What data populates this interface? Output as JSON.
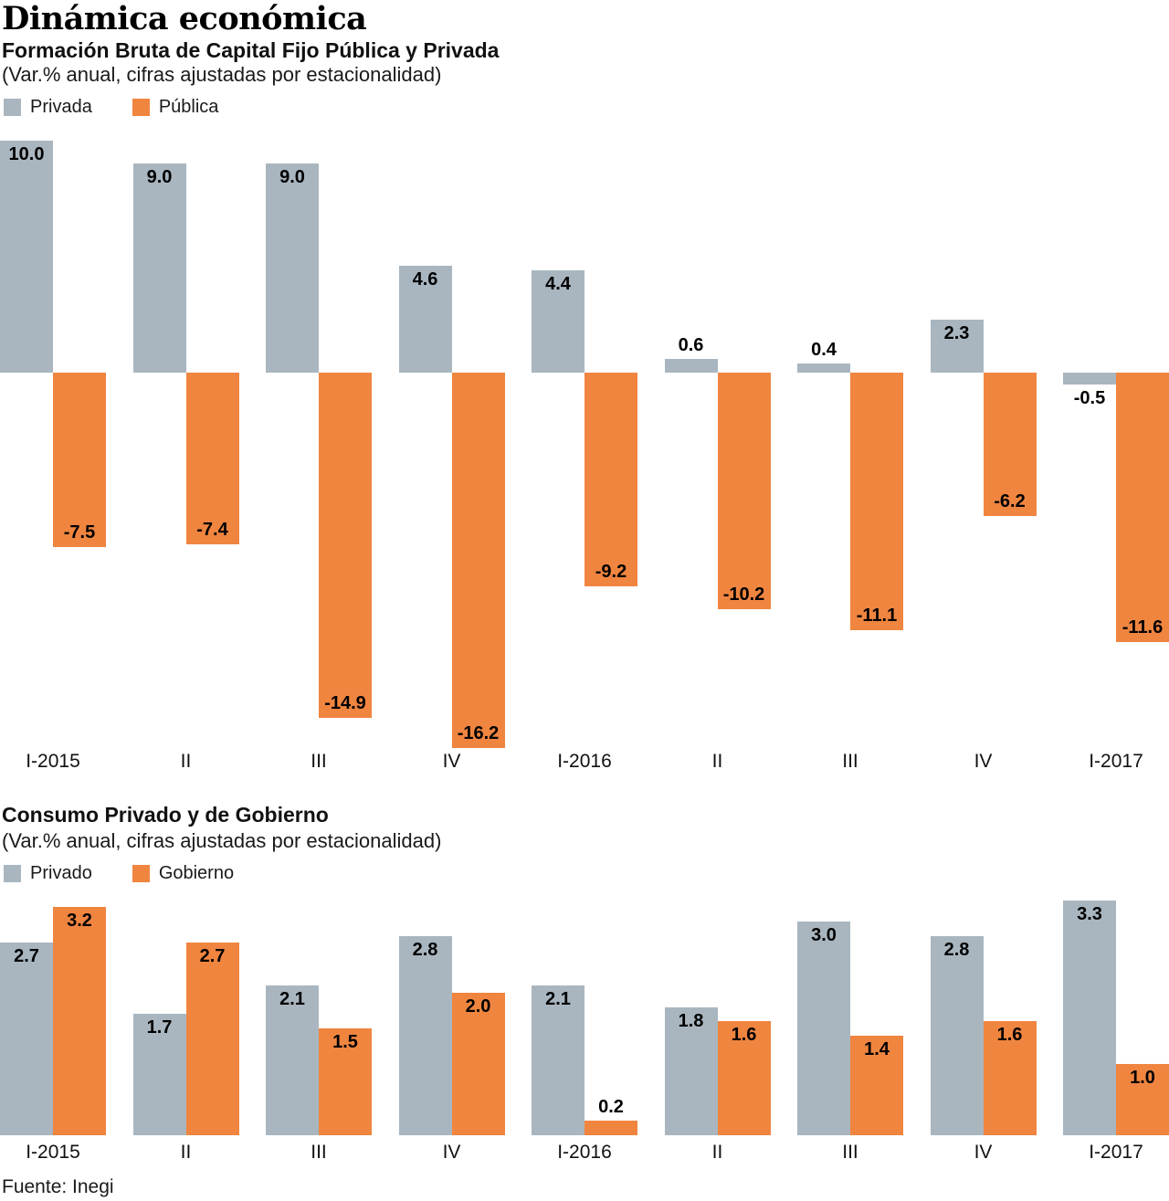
{
  "header": {
    "title": "Dinámica económica"
  },
  "colors": {
    "private_series": "#A9B6C0",
    "public_series": "#F08540",
    "text": "#000000"
  },
  "charts": [
    {
      "title": "Formación Bruta de Capital Fijo Pública y Privada",
      "subtitle": "(Var.% anual, cifras ajustadas por estacionalidad)",
      "legend": [
        {
          "label": "Privada",
          "color": "#A9B6C0"
        },
        {
          "label": "Pública",
          "color": "#F08540"
        }
      ],
      "chart_data": {
        "type": "bar",
        "categories": [
          "I-2015",
          "II",
          "III",
          "IV",
          "I-2016",
          "II",
          "III",
          "IV",
          "I-2017"
        ],
        "series": [
          {
            "name": "Privada",
            "color": "#A9B6C0",
            "values": [
              10.0,
              9.0,
              9.0,
              4.6,
              4.4,
              0.6,
              0.4,
              2.3,
              -0.5
            ]
          },
          {
            "name": "Pública",
            "color": "#F08540",
            "values": [
              -7.5,
              -7.4,
              -14.9,
              -16.2,
              -9.2,
              -10.2,
              -11.1,
              -6.2,
              -11.6
            ]
          }
        ],
        "ylim": [
          -16.2,
          10.0
        ],
        "grid": false,
        "legend_position": "top-left",
        "value_labels": true,
        "value_label_decimals": 1
      }
    },
    {
      "title": "Consumo Privado y de Gobierno",
      "subtitle": "(Var.% anual, cifras ajustadas por estacionalidad)",
      "legend": [
        {
          "label": "Privado",
          "color": "#A9B6C0"
        },
        {
          "label": "Gobierno",
          "color": "#F08540"
        }
      ],
      "chart_data": {
        "type": "bar",
        "categories": [
          "I-2015",
          "II",
          "III",
          "IV",
          "I-2016",
          "II",
          "III",
          "IV",
          "I-2017"
        ],
        "series": [
          {
            "name": "Privado",
            "color": "#A9B6C0",
            "values": [
              2.7,
              1.7,
              2.1,
              2.8,
              2.1,
              1.8,
              3.0,
              2.8,
              3.3
            ]
          },
          {
            "name": "Gobierno",
            "color": "#F08540",
            "values": [
              3.2,
              2.7,
              1.5,
              2.0,
              0.2,
              1.6,
              1.4,
              1.6,
              1.0
            ]
          }
        ],
        "ylim": [
          0,
          3.3
        ],
        "grid": false,
        "legend_position": "top-left",
        "value_labels": true,
        "value_label_decimals": 1
      }
    }
  ],
  "footer": {
    "source": "Fuente: Inegi"
  }
}
